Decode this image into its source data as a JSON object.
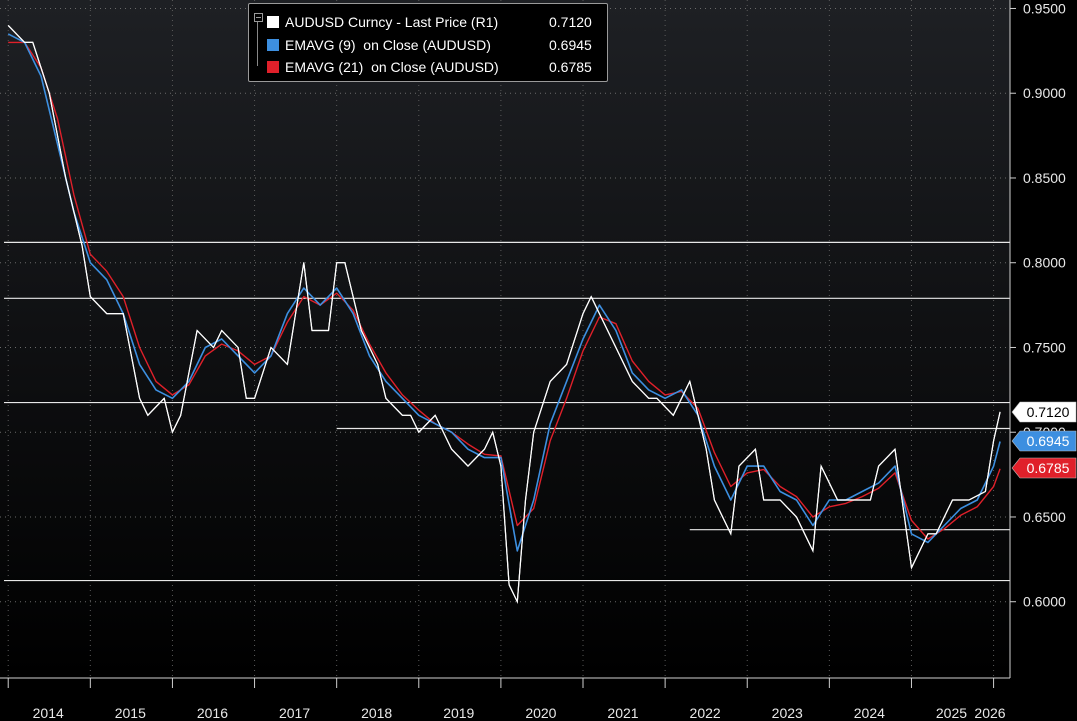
{
  "chart_data": {
    "type": "line",
    "right_axis": {
      "ylim": [
        0.555,
        0.955
      ],
      "ticks": [
        0.95,
        0.9,
        0.85,
        0.8,
        0.75,
        0.7,
        0.65,
        0.6
      ],
      "tick_labels": [
        "0.9500",
        "0.9000",
        "0.8500",
        "0.8000",
        "0.7500",
        "0.7000",
        "0.6500",
        "0.6000"
      ]
    },
    "x_axis": {
      "range": [
        2013.9,
        2026.2
      ],
      "year_labels": [
        "2014",
        "2015",
        "2016",
        "2017",
        "2018",
        "2019",
        "2020",
        "2021",
        "2022",
        "2023",
        "2024",
        "2025",
        "2026"
      ]
    },
    "series": [
      {
        "name": "AUDUSD Curncy - Last Price (R1)",
        "last": "0.7120",
        "color": "#ffffff",
        "x": [
          2014.0,
          2014.2,
          2014.3,
          2014.5,
          2014.7,
          2014.9,
          2015.0,
          2015.2,
          2015.4,
          2015.6,
          2015.7,
          2015.9,
          2016.0,
          2016.1,
          2016.3,
          2016.5,
          2016.6,
          2016.8,
          2016.9,
          2017.0,
          2017.2,
          2017.4,
          2017.6,
          2017.7,
          2017.9,
          2018.0,
          2018.1,
          2018.3,
          2018.5,
          2018.6,
          2018.8,
          2018.9,
          2019.0,
          2019.2,
          2019.4,
          2019.6,
          2019.8,
          2019.9,
          2020.0,
          2020.1,
          2020.2,
          2020.3,
          2020.4,
          2020.6,
          2020.8,
          2021.0,
          2021.1,
          2021.2,
          2021.4,
          2021.6,
          2021.8,
          2021.9,
          2022.1,
          2022.3,
          2022.5,
          2022.6,
          2022.8,
          2022.9,
          2023.1,
          2023.2,
          2023.4,
          2023.6,
          2023.8,
          2023.9,
          2024.1,
          2024.3,
          2024.5,
          2024.6,
          2024.8,
          2025.0,
          2025.2,
          2025.3,
          2025.5,
          2025.7,
          2025.9,
          2026.0,
          2026.08
        ],
        "y": [
          0.94,
          0.93,
          0.93,
          0.9,
          0.85,
          0.81,
          0.78,
          0.77,
          0.77,
          0.72,
          0.71,
          0.72,
          0.7,
          0.71,
          0.76,
          0.75,
          0.76,
          0.75,
          0.72,
          0.72,
          0.75,
          0.74,
          0.8,
          0.76,
          0.76,
          0.8,
          0.8,
          0.76,
          0.74,
          0.72,
          0.71,
          0.71,
          0.7,
          0.71,
          0.69,
          0.68,
          0.69,
          0.7,
          0.68,
          0.61,
          0.6,
          0.66,
          0.7,
          0.73,
          0.74,
          0.77,
          0.78,
          0.77,
          0.75,
          0.73,
          0.72,
          0.72,
          0.71,
          0.73,
          0.69,
          0.66,
          0.64,
          0.68,
          0.69,
          0.66,
          0.66,
          0.65,
          0.63,
          0.68,
          0.66,
          0.66,
          0.66,
          0.68,
          0.69,
          0.62,
          0.64,
          0.64,
          0.66,
          0.66,
          0.665,
          0.695,
          0.712
        ]
      },
      {
        "name": "EMAVG (9)  on Close (AUDUSD)",
        "last": "0.6945",
        "color": "#3d8fe0",
        "x": [
          2014.0,
          2014.2,
          2014.4,
          2014.6,
          2014.8,
          2015.0,
          2015.2,
          2015.4,
          2015.6,
          2015.8,
          2016.0,
          2016.2,
          2016.4,
          2016.6,
          2016.8,
          2017.0,
          2017.2,
          2017.4,
          2017.6,
          2017.8,
          2018.0,
          2018.2,
          2018.4,
          2018.6,
          2018.8,
          2019.0,
          2019.2,
          2019.4,
          2019.6,
          2019.8,
          2020.0,
          2020.2,
          2020.4,
          2020.6,
          2020.8,
          2021.0,
          2021.2,
          2021.4,
          2021.6,
          2021.8,
          2022.0,
          2022.2,
          2022.4,
          2022.6,
          2022.8,
          2023.0,
          2023.2,
          2023.4,
          2023.6,
          2023.8,
          2024.0,
          2024.2,
          2024.4,
          2024.6,
          2024.8,
          2025.0,
          2025.2,
          2025.4,
          2025.6,
          2025.8,
          2026.0,
          2026.08
        ],
        "y": [
          0.935,
          0.93,
          0.91,
          0.87,
          0.83,
          0.8,
          0.79,
          0.77,
          0.74,
          0.725,
          0.72,
          0.73,
          0.75,
          0.755,
          0.745,
          0.735,
          0.745,
          0.77,
          0.785,
          0.775,
          0.785,
          0.77,
          0.745,
          0.73,
          0.72,
          0.71,
          0.705,
          0.7,
          0.69,
          0.685,
          0.685,
          0.63,
          0.66,
          0.705,
          0.73,
          0.755,
          0.775,
          0.76,
          0.735,
          0.725,
          0.72,
          0.725,
          0.71,
          0.68,
          0.66,
          0.68,
          0.68,
          0.665,
          0.66,
          0.645,
          0.66,
          0.66,
          0.665,
          0.67,
          0.68,
          0.64,
          0.635,
          0.645,
          0.655,
          0.66,
          0.68,
          0.6945
        ]
      },
      {
        "name": "EMAVG (21)  on Close (AUDUSD)",
        "last": "0.6785",
        "color": "#e0202a",
        "x": [
          2014.0,
          2014.2,
          2014.4,
          2014.6,
          2014.8,
          2015.0,
          2015.2,
          2015.4,
          2015.6,
          2015.8,
          2016.0,
          2016.2,
          2016.4,
          2016.6,
          2016.8,
          2017.0,
          2017.2,
          2017.4,
          2017.6,
          2017.8,
          2018.0,
          2018.2,
          2018.4,
          2018.6,
          2018.8,
          2019.0,
          2019.2,
          2019.4,
          2019.6,
          2019.8,
          2020.0,
          2020.2,
          2020.4,
          2020.6,
          2020.8,
          2021.0,
          2021.2,
          2021.4,
          2021.6,
          2021.8,
          2022.0,
          2022.2,
          2022.4,
          2022.6,
          2022.8,
          2023.0,
          2023.2,
          2023.4,
          2023.6,
          2023.8,
          2024.0,
          2024.2,
          2024.4,
          2024.6,
          2024.8,
          2025.0,
          2025.2,
          2025.4,
          2025.6,
          2025.8,
          2026.0,
          2026.08
        ],
        "y": [
          0.93,
          0.93,
          0.915,
          0.885,
          0.84,
          0.805,
          0.795,
          0.78,
          0.75,
          0.73,
          0.722,
          0.728,
          0.745,
          0.752,
          0.748,
          0.74,
          0.745,
          0.765,
          0.78,
          0.775,
          0.782,
          0.772,
          0.752,
          0.735,
          0.722,
          0.713,
          0.705,
          0.7,
          0.693,
          0.687,
          0.686,
          0.645,
          0.655,
          0.695,
          0.72,
          0.748,
          0.768,
          0.764,
          0.742,
          0.73,
          0.722,
          0.724,
          0.714,
          0.688,
          0.668,
          0.676,
          0.678,
          0.668,
          0.662,
          0.65,
          0.656,
          0.658,
          0.662,
          0.667,
          0.676,
          0.648,
          0.637,
          0.643,
          0.651,
          0.656,
          0.668,
          0.6785
        ]
      }
    ],
    "reference_lines": [
      0.812,
      0.779,
      0.7175,
      0.7022,
      0.6425,
      0.6125
    ]
  },
  "legend": {
    "rows": [
      {
        "label": "AUDUSD Curncy - Last Price (R1)",
        "value": "0.7120",
        "color": "#ffffff"
      },
      {
        "label": "EMAVG (9)  on Close (AUDUSD)",
        "value": "0.6945",
        "color": "#3d8fe0"
      },
      {
        "label": "EMAVG (21)  on Close (AUDUSD)",
        "value": "0.6785",
        "color": "#e0202a"
      }
    ]
  },
  "callouts": [
    {
      "text": "0.7120",
      "value": 0.712,
      "bg": "#ffffff",
      "fg": "#000000"
    },
    {
      "text": "0.6945",
      "value": 0.6945,
      "bg": "#3d8fe0",
      "fg": "#ffffff"
    },
    {
      "text": "0.6785",
      "value": 0.6785,
      "bg": "#e0202a",
      "fg": "#ffffff"
    }
  ]
}
